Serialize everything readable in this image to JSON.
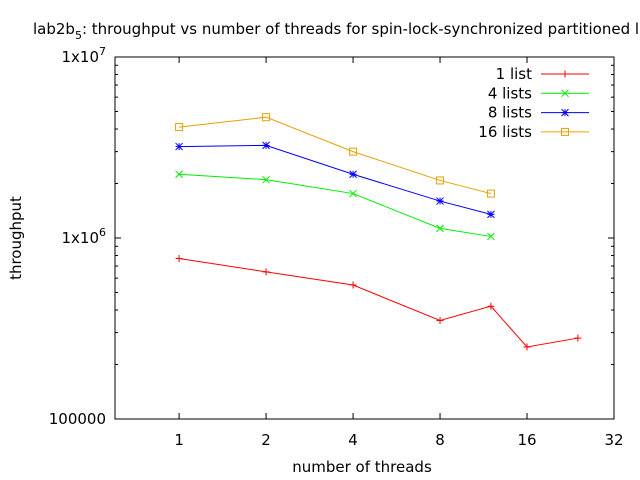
{
  "chart_data": {
    "type": "line",
    "title": "lab2b",
    "title_sub": "5",
    "title_rest": ": throughput vs number of threads for spin-lock-synchronized partitioned lists",
    "xlabel": "number of threads",
    "ylabel": "throughput",
    "x_scale": "log2",
    "y_scale": "log10",
    "xlim": [
      0.6,
      32
    ],
    "ylim": [
      100000,
      10000000
    ],
    "x_ticks": [
      1,
      2,
      4,
      8,
      16,
      32
    ],
    "x_tick_labels": [
      "1",
      "2",
      "4",
      "8",
      "16",
      "32"
    ],
    "y_ticks": [
      100000,
      1000000,
      10000000
    ],
    "y_tick_labels": [
      "100000",
      "1x10",
      "1x10"
    ],
    "y_tick_exps": [
      "",
      "6",
      "7"
    ],
    "legend_position": "top-right",
    "series": [
      {
        "name": "1 list",
        "color": "#ff0000",
        "marker": "plus",
        "x": [
          1,
          2,
          4,
          8,
          12,
          16,
          24
        ],
        "y": [
          770000,
          650000,
          550000,
          350000,
          420000,
          250000,
          280000
        ]
      },
      {
        "name": "4 lists",
        "color": "#00ee00",
        "marker": "cross",
        "x": [
          1,
          2,
          4,
          8,
          12
        ],
        "y": [
          2250000,
          2100000,
          1760000,
          1130000,
          1020000
        ]
      },
      {
        "name": "8 lists",
        "color": "#0000ff",
        "marker": "star",
        "x": [
          1,
          2,
          4,
          8,
          12
        ],
        "y": [
          3200000,
          3250000,
          2250000,
          1600000,
          1350000
        ]
      },
      {
        "name": "16 lists",
        "color": "#e8a000",
        "marker": "square",
        "x": [
          1,
          2,
          4,
          8,
          12
        ],
        "y": [
          4100000,
          4650000,
          3000000,
          2080000,
          1760000
        ]
      }
    ]
  }
}
